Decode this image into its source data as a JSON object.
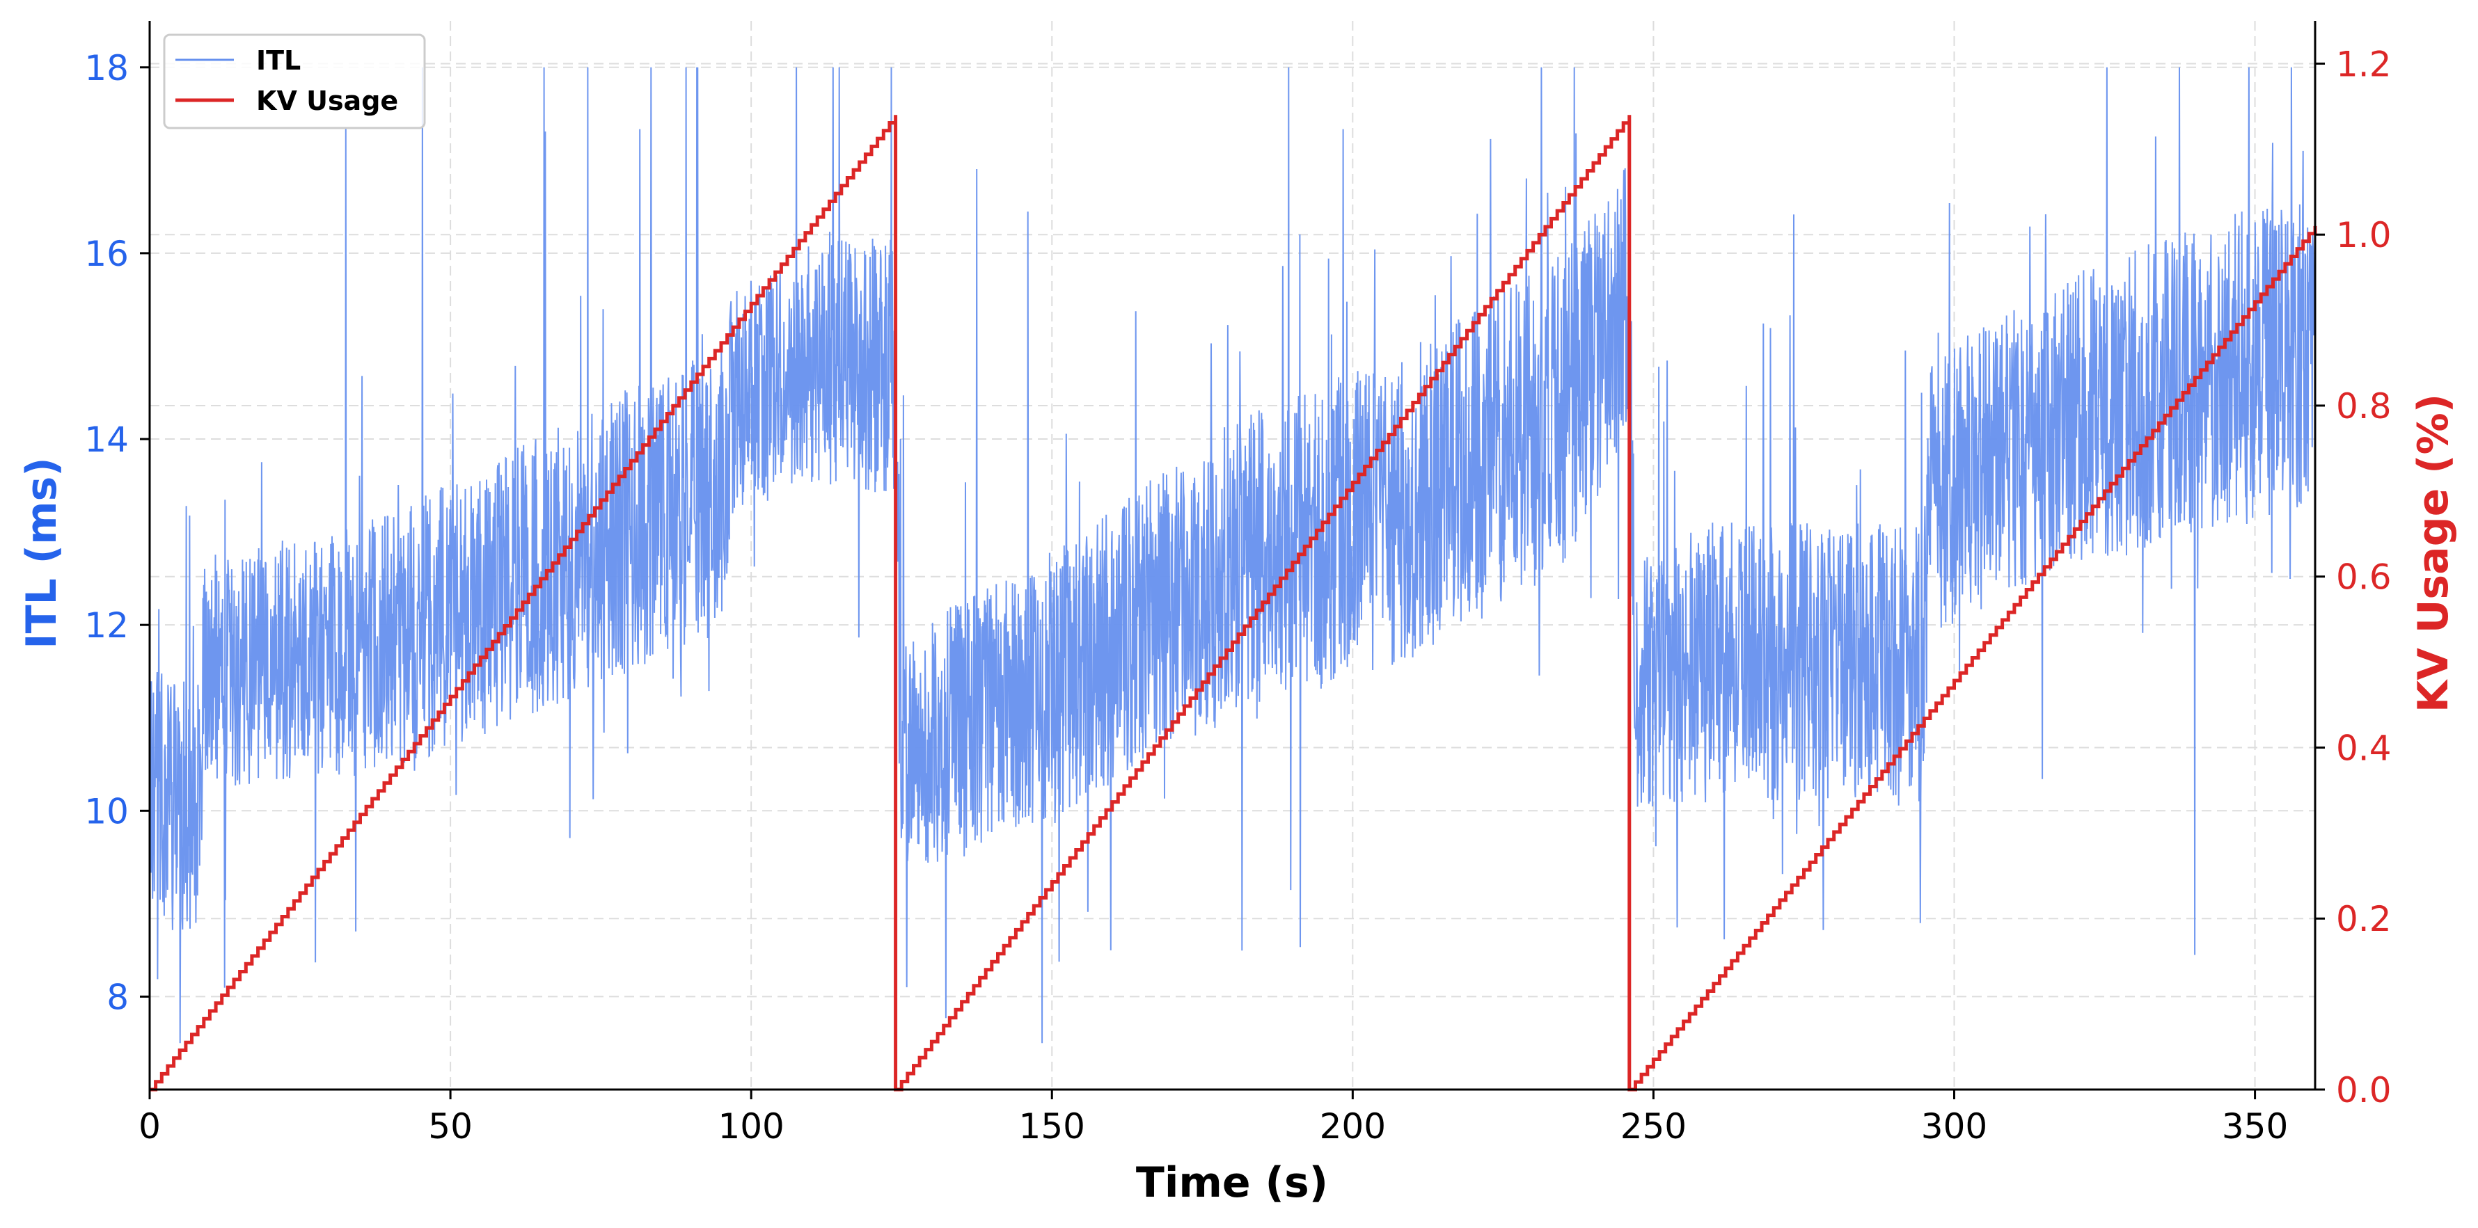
{
  "chart_data": {
    "type": "line",
    "x_axis": {
      "label": "Time (s)",
      "range": [
        0,
        360
      ],
      "ticks": [
        0,
        50,
        100,
        150,
        200,
        250,
        300,
        350
      ],
      "tick_labels": [
        "0",
        "50",
        "100",
        "150",
        "200",
        "250",
        "300",
        "350"
      ]
    },
    "y_axis_left": {
      "label": "ITL (ms)",
      "range": [
        7.0,
        18.5
      ],
      "ticks": [
        8,
        10,
        12,
        14,
        16,
        18
      ],
      "tick_labels": [
        "8",
        "10",
        "12",
        "14",
        "16",
        "18"
      ],
      "color": "#2563eb"
    },
    "y_axis_right": {
      "label": "KV Usage (%)",
      "range": [
        0.0,
        1.25
      ],
      "ticks": [
        0.0,
        0.2,
        0.4,
        0.6,
        0.8,
        1.0,
        1.2
      ],
      "tick_labels": [
        "0.0",
        "0.2",
        "0.4",
        "0.6",
        "0.8",
        "1.0",
        "1.2"
      ],
      "color": "#dc2626"
    },
    "grid": true,
    "legend": {
      "position": "top-left"
    },
    "series": [
      {
        "name": "ITL",
        "axis": "left",
        "color": "#6690ee",
        "style": "noisy line",
        "trend": {
          "x": [
            0,
            8,
            9,
            20,
            40,
            70,
            95,
            97,
            110,
            123.5,
            124,
            125,
            150,
            180,
            210,
            235,
            245.5,
            246,
            247,
            260,
            280,
            295,
            296,
            320,
            350,
            360
          ],
          "center": [
            10.2,
            10.0,
            11.4,
            11.6,
            11.8,
            12.7,
            13.5,
            14.4,
            14.8,
            14.8,
            14.8,
            10.6,
            11.3,
            12.6,
            13.3,
            14.3,
            15.5,
            15.5,
            11.4,
            11.6,
            11.6,
            11.6,
            13.4,
            14.2,
            14.8,
            15.0
          ],
          "spread": [
            1.4,
            1.4,
            1.2,
            1.3,
            1.4,
            1.5,
            1.6,
            1.2,
            1.3,
            1.4,
            1.4,
            1.3,
            1.5,
            1.6,
            1.7,
            1.7,
            1.5,
            1.5,
            1.4,
            1.5,
            1.5,
            1.5,
            1.5,
            1.6,
            1.7,
            1.7
          ]
        },
        "range_x": [
          0,
          360
        ],
        "min": 7.5,
        "max": 18.0
      },
      {
        "name": "KV Usage",
        "axis": "right",
        "color": "#dc2626",
        "style": "step",
        "segments": [
          {
            "x_start": 0,
            "x_end": 124,
            "y_start": 0.0,
            "y_end": 1.14
          },
          {
            "x_start": 124,
            "x_end": 246,
            "y_start": 0.0,
            "y_end": 1.14
          },
          {
            "x_start": 246,
            "x_end": 360,
            "y_start": 0.0,
            "y_end": 1.01
          }
        ]
      }
    ]
  },
  "colors": {
    "itl_line": "#6690ee",
    "kv_line": "#dc2626",
    "left_axis_text": "#2563eb",
    "right_axis_text": "#dc2626",
    "grid": "#dddddd"
  }
}
